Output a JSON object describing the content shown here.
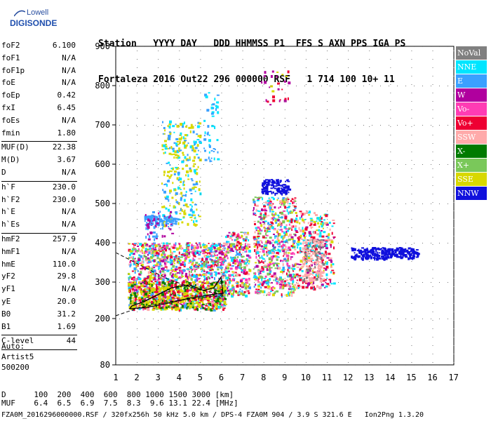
{
  "logo": {
    "top": "Lowell",
    "bottom": "DIGISONDE"
  },
  "header": {
    "labels": "Station   YYYY DAY   DDD HHMMSS P1  FFS S AXN PPS IGA PS",
    "values": "Fortaleza 2016 Out22 296 000000 RSF   1 714 100 10+ 11"
  },
  "params": [
    {
      "label": "foF2",
      "value": "6.100"
    },
    {
      "label": "foF1",
      "value": "N/A"
    },
    {
      "label": "foF1p",
      "value": "N/A"
    },
    {
      "label": "foE",
      "value": "N/A"
    },
    {
      "label": "foEp",
      "value": "0.42"
    },
    {
      "label": "fxI",
      "value": "6.45"
    },
    {
      "label": "foEs",
      "value": "N/A"
    },
    {
      "label": "fmin",
      "value": "1.80",
      "sep": true
    },
    {
      "label": "MUF(D)",
      "value": "22.38"
    },
    {
      "label": "M(D)",
      "value": "3.67"
    },
    {
      "label": "D",
      "value": "N/A",
      "sep": true
    },
    {
      "label": "h`F",
      "value": "230.0"
    },
    {
      "label": "h`F2",
      "value": "230.0"
    },
    {
      "label": "h`E",
      "value": "N/A"
    },
    {
      "label": "h`Es",
      "value": "N/A",
      "sep": true
    },
    {
      "label": "hmF2",
      "value": "257.9"
    },
    {
      "label": "hmF1",
      "value": "N/A"
    },
    {
      "label": "hmE",
      "value": "110.0"
    },
    {
      "label": "yF2",
      "value": "29.8"
    },
    {
      "label": "yF1",
      "value": "N/A"
    },
    {
      "label": "yE",
      "value": "20.0"
    },
    {
      "label": "B0",
      "value": "31.2"
    },
    {
      "label": "B1",
      "value": "1.69",
      "sep": true
    },
    {
      "label": "C-level",
      "value": "44",
      "sep": true
    }
  ],
  "auto": {
    "line1": "Auto:",
    "line2": "Artist5",
    "line3": "500200"
  },
  "legend": [
    {
      "label": "NoVal",
      "color": "#808080"
    },
    {
      "label": "NNE",
      "color": "#00e5ff"
    },
    {
      "label": "E",
      "color": "#3aa0ff"
    },
    {
      "label": "W",
      "color": "#b0009e"
    },
    {
      "label": "Vo-",
      "color": "#ff3cb4"
    },
    {
      "label": "Vo+",
      "color": "#ee0033"
    },
    {
      "label": "SSW",
      "color": "#ffaaaa"
    },
    {
      "label": "X-",
      "color": "#007a00"
    },
    {
      "label": "X+",
      "color": "#7ac85a"
    },
    {
      "label": "SSE",
      "color": "#d8d800"
    },
    {
      "label": "NNW",
      "color": "#1010dd"
    }
  ],
  "axes": {
    "y_ticks": [
      "900",
      "800",
      "700",
      "600",
      "500",
      "400",
      "300",
      "200",
      "80"
    ],
    "x_ticks": [
      "1",
      "2",
      "3",
      "4",
      "5",
      "6",
      "7",
      "8",
      "9",
      "10",
      "11",
      "12",
      "13",
      "14",
      "15",
      "16",
      "17"
    ]
  },
  "footer": {
    "line1": "D      100  200  400  600  800 1000 1500 3000 [km]",
    "line2": "MUF    6.4  6.5  6.9  7.5  8.3  9.6 13.1 22.4 [MHz]",
    "file": "FZA0M_2016296000000.RSF / 320fx256h 50 kHz 5.0 km / DPS-4 FZA0M 904 / 3.9 S 321.6 E   Ion2Png 1.3.20"
  }
}
